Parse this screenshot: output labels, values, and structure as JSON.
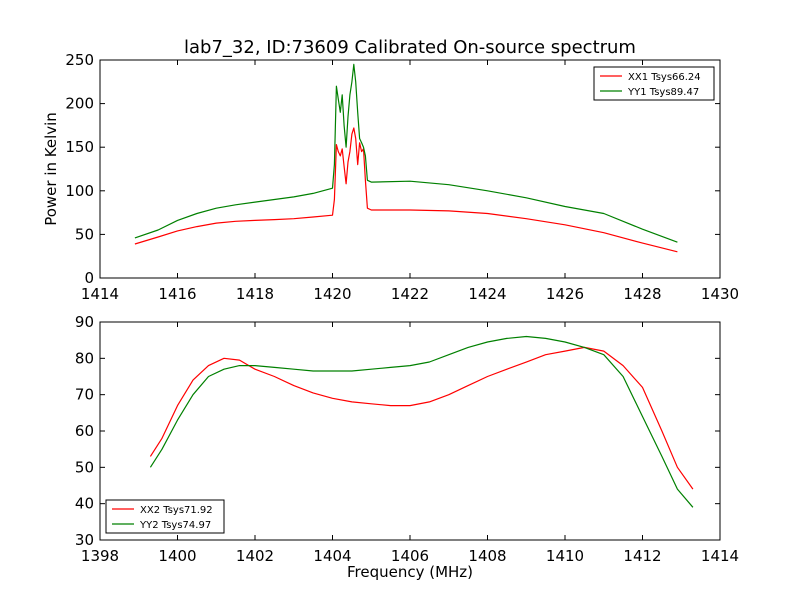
{
  "figure_title": "lab7_32, ID:73609 Calibrated On-source spectrum",
  "chart_data": [
    {
      "type": "line",
      "xlabel": "",
      "ylabel": "Power in Kelvin",
      "xlim": [
        1414,
        1430
      ],
      "ylim": [
        0,
        250
      ],
      "xticks": [
        1414,
        1416,
        1418,
        1420,
        1422,
        1424,
        1426,
        1428,
        1430
      ],
      "yticks": [
        0,
        50,
        100,
        150,
        200,
        250
      ],
      "grid": false,
      "legend_position": "top-right",
      "series": [
        {
          "name": "XX1 Tsys66.24",
          "color": "#ff0000",
          "points": [
            [
              1414.9,
              39
            ],
            [
              1415.5,
              47
            ],
            [
              1416,
              54
            ],
            [
              1416.5,
              59
            ],
            [
              1417,
              63
            ],
            [
              1417.5,
              65
            ],
            [
              1418,
              66
            ],
            [
              1418.5,
              67
            ],
            [
              1419,
              68
            ],
            [
              1419.5,
              70
            ],
            [
              1420,
              72
            ],
            [
              1420.05,
              90
            ],
            [
              1420.1,
              153
            ],
            [
              1420.15,
              145
            ],
            [
              1420.2,
              140
            ],
            [
              1420.25,
              148
            ],
            [
              1420.3,
              128
            ],
            [
              1420.35,
              108
            ],
            [
              1420.4,
              133
            ],
            [
              1420.45,
              145
            ],
            [
              1420.5,
              165
            ],
            [
              1420.55,
              172
            ],
            [
              1420.6,
              160
            ],
            [
              1420.65,
              130
            ],
            [
              1420.7,
              155
            ],
            [
              1420.75,
              145
            ],
            [
              1420.8,
              148
            ],
            [
              1420.85,
              112
            ],
            [
              1420.9,
              80
            ],
            [
              1421,
              78
            ],
            [
              1422,
              78
            ],
            [
              1423,
              77
            ],
            [
              1424,
              74
            ],
            [
              1425,
              68
            ],
            [
              1426,
              61
            ],
            [
              1427,
              52
            ],
            [
              1428,
              40
            ],
            [
              1428.9,
              30
            ]
          ]
        },
        {
          "name": "YY1 Tsys89.47",
          "color": "#008000",
          "points": [
            [
              1414.9,
              46
            ],
            [
              1415.5,
              55
            ],
            [
              1416,
              66
            ],
            [
              1416.5,
              74
            ],
            [
              1417,
              80
            ],
            [
              1417.5,
              84
            ],
            [
              1418,
              87
            ],
            [
              1418.5,
              90
            ],
            [
              1419,
              93
            ],
            [
              1419.5,
              97
            ],
            [
              1420,
              103
            ],
            [
              1420.05,
              130
            ],
            [
              1420.1,
              220
            ],
            [
              1420.15,
              205
            ],
            [
              1420.2,
              190
            ],
            [
              1420.25,
              210
            ],
            [
              1420.3,
              175
            ],
            [
              1420.35,
              150
            ],
            [
              1420.4,
              185
            ],
            [
              1420.45,
              210
            ],
            [
              1420.5,
              225
            ],
            [
              1420.55,
              245
            ],
            [
              1420.6,
              225
            ],
            [
              1420.65,
              190
            ],
            [
              1420.7,
              160
            ],
            [
              1420.75,
              155
            ],
            [
              1420.8,
              150
            ],
            [
              1420.85,
              140
            ],
            [
              1420.9,
              112
            ],
            [
              1421,
              110
            ],
            [
              1422,
              111
            ],
            [
              1423,
              107
            ],
            [
              1424,
              100
            ],
            [
              1425,
              92
            ],
            [
              1426,
              82
            ],
            [
              1427,
              74
            ],
            [
              1428,
              56
            ],
            [
              1428.9,
              41
            ]
          ]
        }
      ]
    },
    {
      "type": "line",
      "xlabel": "Frequency (MHz)",
      "ylabel": "",
      "xlim": [
        1398,
        1414
      ],
      "ylim": [
        30,
        90
      ],
      "xticks": [
        1398,
        1400,
        1402,
        1404,
        1406,
        1408,
        1410,
        1412,
        1414
      ],
      "yticks": [
        30,
        40,
        50,
        60,
        70,
        80,
        90
      ],
      "grid": false,
      "legend_position": "bottom-left",
      "series": [
        {
          "name": "XX2 Tsys71.92",
          "color": "#ff0000",
          "points": [
            [
              1399.3,
              53
            ],
            [
              1399.6,
              58
            ],
            [
              1400,
              67
            ],
            [
              1400.4,
              74
            ],
            [
              1400.8,
              78
            ],
            [
              1401.2,
              80
            ],
            [
              1401.6,
              79.5
            ],
            [
              1402,
              77
            ],
            [
              1402.5,
              75
            ],
            [
              1403,
              72.5
            ],
            [
              1403.5,
              70.5
            ],
            [
              1404,
              69
            ],
            [
              1404.5,
              68
            ],
            [
              1405,
              67.5
            ],
            [
              1405.5,
              67
            ],
            [
              1406,
              67
            ],
            [
              1406.5,
              68
            ],
            [
              1407,
              70
            ],
            [
              1407.5,
              72.5
            ],
            [
              1408,
              75
            ],
            [
              1408.5,
              77
            ],
            [
              1409,
              79
            ],
            [
              1409.5,
              81
            ],
            [
              1410,
              82
            ],
            [
              1410.5,
              83
            ],
            [
              1411,
              82
            ],
            [
              1411.5,
              78
            ],
            [
              1412,
              72
            ],
            [
              1412.5,
              60
            ],
            [
              1412.9,
              50
            ],
            [
              1413.3,
              44
            ]
          ]
        },
        {
          "name": "YY2 Tsys74.97",
          "color": "#008000",
          "points": [
            [
              1399.3,
              50
            ],
            [
              1399.6,
              55
            ],
            [
              1400,
              63
            ],
            [
              1400.4,
              70
            ],
            [
              1400.8,
              75
            ],
            [
              1401.2,
              77
            ],
            [
              1401.6,
              78
            ],
            [
              1402,
              78
            ],
            [
              1402.5,
              77.5
            ],
            [
              1403,
              77
            ],
            [
              1403.5,
              76.5
            ],
            [
              1404,
              76.5
            ],
            [
              1404.5,
              76.5
            ],
            [
              1405,
              77
            ],
            [
              1405.5,
              77.5
            ],
            [
              1406,
              78
            ],
            [
              1406.5,
              79
            ],
            [
              1407,
              81
            ],
            [
              1407.5,
              83
            ],
            [
              1408,
              84.5
            ],
            [
              1408.5,
              85.5
            ],
            [
              1409,
              86
            ],
            [
              1409.5,
              85.5
            ],
            [
              1410,
              84.5
            ],
            [
              1410.5,
              83
            ],
            [
              1411,
              81
            ],
            [
              1411.5,
              75
            ],
            [
              1412,
              64
            ],
            [
              1412.5,
              53
            ],
            [
              1412.9,
              44
            ],
            [
              1413.3,
              39
            ]
          ]
        }
      ]
    }
  ]
}
